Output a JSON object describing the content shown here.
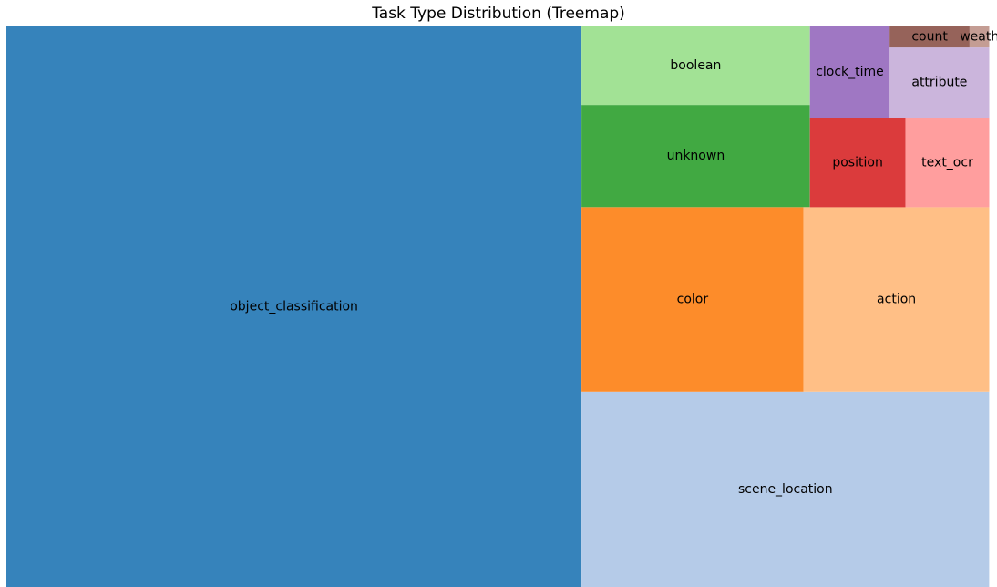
{
  "chart_data": {
    "type": "treemap",
    "title": "Task Type Distribution (Treemap)",
    "cells": [
      {
        "label": "object_classification",
        "color": "#3683bb",
        "x": 0,
        "y": 0,
        "w": 0.5817,
        "h": 1
      },
      {
        "label": "scene_location",
        "color": "#b5cbe8",
        "x": 0.5817,
        "y": 0.6517,
        "w": 0.4123,
        "h": 0.3483
      },
      {
        "label": "color",
        "color": "#fd8c2a",
        "x": 0.5817,
        "y": 0.3225,
        "w": 0.2245,
        "h": 0.3292
      },
      {
        "label": "action",
        "color": "#ffbf86",
        "x": 0.8062,
        "y": 0.3225,
        "w": 0.1878,
        "h": 0.3292
      },
      {
        "label": "unknown",
        "color": "#41a942",
        "x": 0.5817,
        "y": 0.14,
        "w": 0.2309,
        "h": 0.1825
      },
      {
        "label": "boolean",
        "color": "#a2e295",
        "x": 0.5817,
        "y": 0,
        "w": 0.2309,
        "h": 0.14
      },
      {
        "label": "position",
        "color": "#db3b3c",
        "x": 0.8126,
        "y": 0.1629,
        "w": 0.0967,
        "h": 0.1596
      },
      {
        "label": "text_ocr",
        "color": "#ff9e9e",
        "x": 0.9093,
        "y": 0.1629,
        "w": 0.0847,
        "h": 0.1596
      },
      {
        "label": "clock_time",
        "color": "#9f77c3",
        "x": 0.8126,
        "y": 0,
        "w": 0.0807,
        "h": 0.1629
      },
      {
        "label": "attribute",
        "color": "#cbb5dc",
        "x": 0.8933,
        "y": 0.0375,
        "w": 0.1007,
        "h": 0.1254
      },
      {
        "label": "count",
        "color": "#96635a",
        "x": 0.8933,
        "y": 0,
        "w": 0.0808,
        "h": 0.0375
      },
      {
        "label": "weath",
        "color": "#c49d94",
        "x": 0.9741,
        "y": 0,
        "w": 0.0199,
        "h": 0.0375
      }
    ]
  }
}
